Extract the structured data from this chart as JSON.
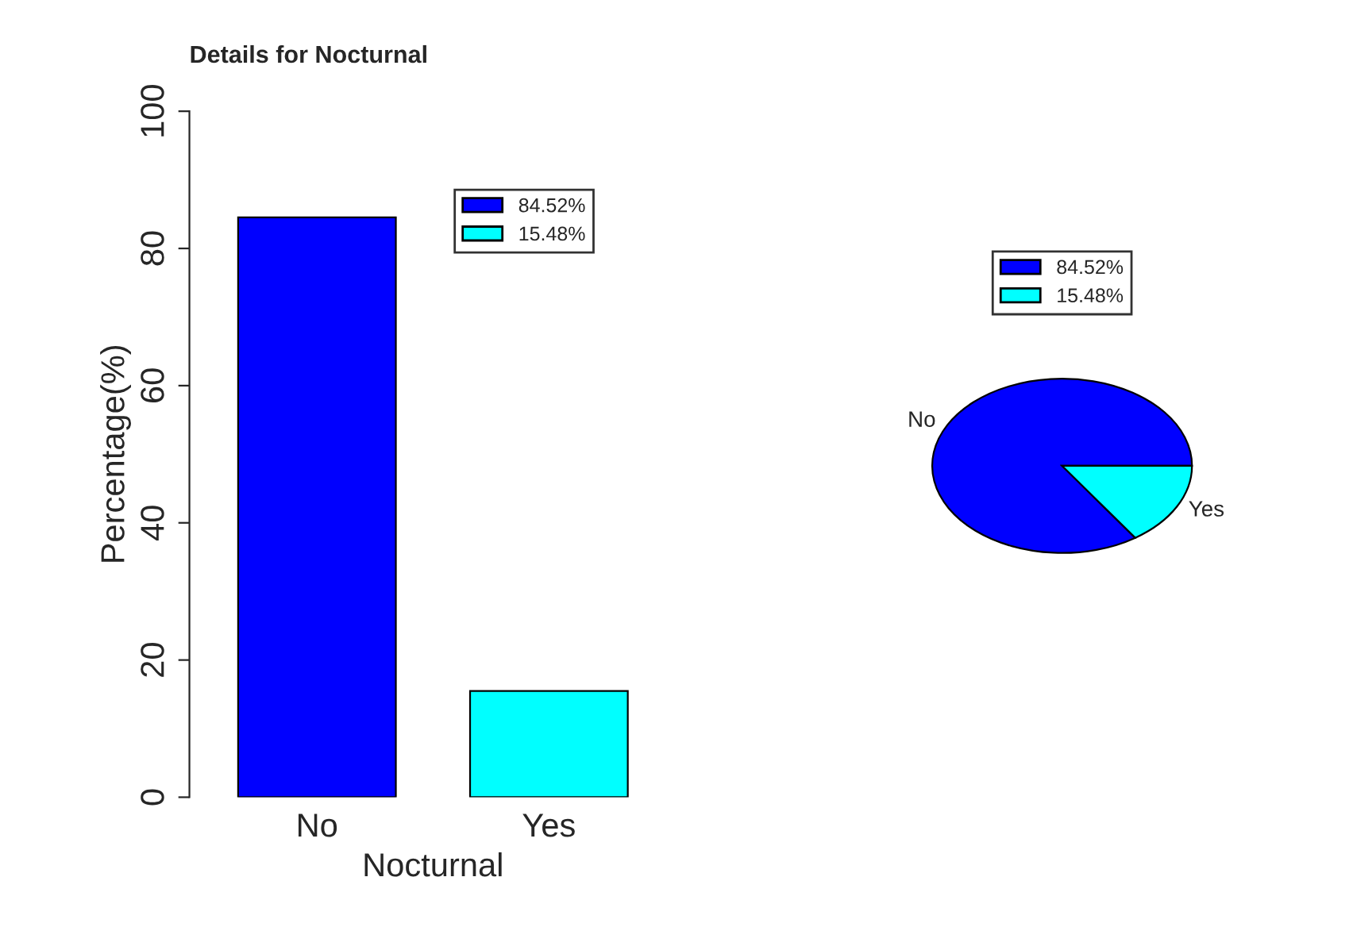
{
  "chart_data": [
    {
      "type": "bar",
      "title": "Details for Nocturnal",
      "xlabel": "Nocturnal",
      "ylabel": "Percentage(%)",
      "categories": [
        "No",
        "Yes"
      ],
      "series": [
        {
          "name": "84.52%",
          "color": "#0000ff",
          "values": [
            84.52,
            null
          ]
        },
        {
          "name": "15.48%",
          "color": "#00ffff",
          "values": [
            null,
            15.48
          ]
        }
      ],
      "ylim": [
        0,
        100
      ],
      "yticks": [
        0,
        20,
        40,
        60,
        80,
        100
      ],
      "legend": "top right",
      "grid": false
    },
    {
      "type": "pie",
      "categories": [
        "No",
        "Yes"
      ],
      "values": [
        84.52,
        15.48
      ],
      "colors": [
        "#0000ff",
        "#00ffff"
      ],
      "annotations": [
        "84.52%",
        "15.48%"
      ]
    }
  ]
}
